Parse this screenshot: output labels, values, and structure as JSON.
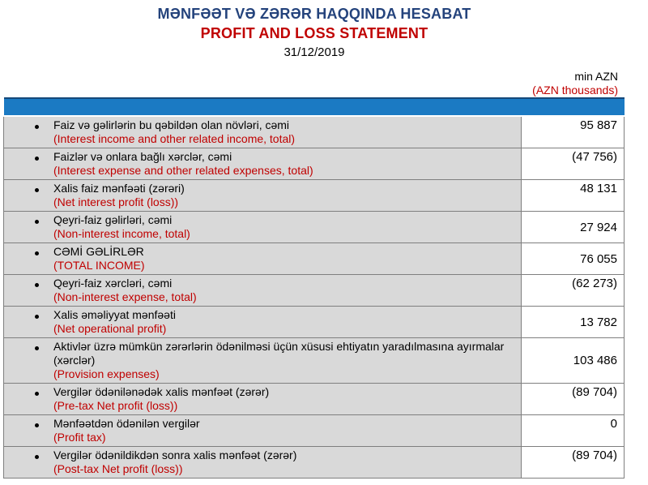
{
  "header": {
    "title_az": "MƏNFƏƏT VƏ ZƏRƏR HAQQINDA HESABAT",
    "title_en": "PROFIT AND LOSS STATEMENT",
    "date": "31/12/2019",
    "unit_az": "min AZN",
    "unit_en": "(AZN thousands)"
  },
  "colors": {
    "title_blue": "#24437C",
    "accent_red": "#C00000",
    "bar_blue": "#1B7AC3",
    "bar_top_edge": "#15497A",
    "row_gray": "#D9D9D9",
    "border_gray": "#7F7F7F"
  },
  "table": {
    "rows": [
      {
        "label_az": "Faiz və gəlirlərin bu qəbildən olan növləri, cəmi",
        "label_en": "(Interest income and other related income, total)",
        "value": "95 887",
        "value_valign": "top"
      },
      {
        "label_az": "Faizlər və onlara bağlı xərclər, cəmi",
        "label_en": "(Interest expense and other related expenses, total)",
        "value": "(47 756)",
        "value_valign": "top"
      },
      {
        "label_az": "Xalis faiz mənfəəti (zərəri)",
        "label_en": "(Net interest profit (loss))",
        "value": "48 131",
        "value_valign": "top"
      },
      {
        "label_az": "Qeyri-faiz gəlirləri, cəmi",
        "label_en": "(Non-interest income, total)",
        "value": "27 924",
        "value_valign": "middle"
      },
      {
        "label_az": "CƏMİ GƏLİRLƏR",
        "label_en": "(TOTAL INCOME)",
        "value": "76 055",
        "value_valign": "middle"
      },
      {
        "label_az": "Qeyri-faiz xərcləri, cəmi",
        "label_en": "(Non-interest expense, total)",
        "value": "(62 273)",
        "value_valign": "top"
      },
      {
        "label_az": "Xalis əməliyyat mənfəəti",
        "label_en": "(Net operational profit)",
        "value": "13 782",
        "value_valign": "middle"
      },
      {
        "label_az": "Aktivlər üzrə mümkün zərərlərin ödənilməsi üçün xüsusi ehtiyatın yaradılmasına ayırmalar (xərclər)",
        "label_en": "(Provision expenses)",
        "value": "103 486",
        "value_valign": "middle"
      },
      {
        "label_az": "Vergilər ödənilənədək xalis mənfəət (zərər)",
        "label_en": "(Pre-tax Net profit (loss))",
        "value": "(89 704)",
        "value_valign": "top"
      },
      {
        "label_az": "Mənfəətdən ödənilən vergilər",
        "label_en": "(Profit tax)",
        "value": "0",
        "value_valign": "top"
      },
      {
        "label_az": "Vergilər ödənildikdən sonra xalis mənfəət (zərər)",
        "label_en": "(Post-tax Net profit (loss))",
        "value": "(89 704)",
        "value_valign": "top"
      }
    ]
  }
}
